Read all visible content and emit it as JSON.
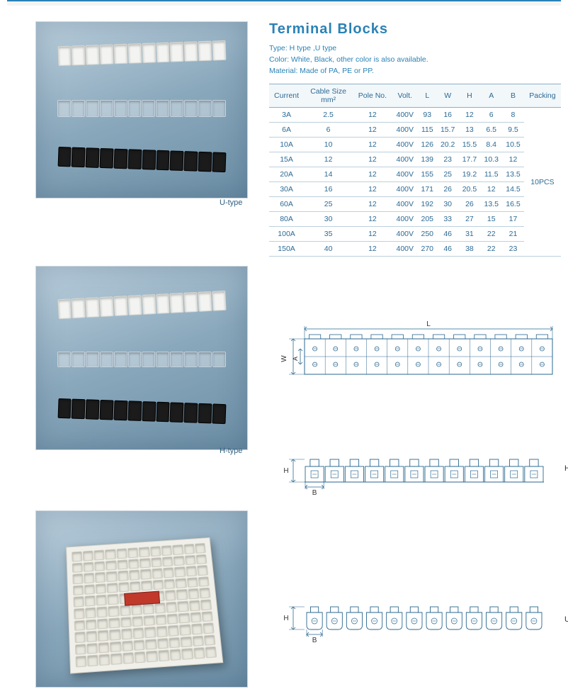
{
  "title": "Terminal  Blocks",
  "meta": {
    "type_line": "Type:  H type ,U type",
    "color_line": "Color:  White, Black,  other color is  also available.",
    "material_line": "Material: Made of PA, PE or PP."
  },
  "photo_labels": {
    "u_type": "U-type",
    "h_type": "H-type"
  },
  "table": {
    "columns": [
      "Current",
      "Cable Size mm²",
      "Pole No.",
      "Volt.",
      "L",
      "W",
      "H",
      "A",
      "B",
      "Packing"
    ],
    "packing": "10PCS",
    "rows": [
      {
        "current": "3A",
        "cable": "2.5",
        "pole": "12",
        "volt": "400V",
        "l": "93",
        "w": "16",
        "h": "12",
        "a": "6",
        "b": "8"
      },
      {
        "current": "6A",
        "cable": "6",
        "pole": "12",
        "volt": "400V",
        "l": "115",
        "w": "15.7",
        "h": "13",
        "a": "6.5",
        "b": "9.5"
      },
      {
        "current": "10A",
        "cable": "10",
        "pole": "12",
        "volt": "400V",
        "l": "126",
        "w": "20.2",
        "h": "15.5",
        "a": "8.4",
        "b": "10.5"
      },
      {
        "current": "15A",
        "cable": "12",
        "pole": "12",
        "volt": "400V",
        "l": "139",
        "w": "23",
        "h": "17.7",
        "a": "10.3",
        "b": "12"
      },
      {
        "current": "20A",
        "cable": "14",
        "pole": "12",
        "volt": "400V",
        "l": "155",
        "w": "25",
        "h": "19.2",
        "a": "11.5",
        "b": "13.5"
      },
      {
        "current": "30A",
        "cable": "16",
        "pole": "12",
        "volt": "400V",
        "l": "171",
        "w": "26",
        "h": "20.5",
        "a": "12",
        "b": "14.5"
      },
      {
        "current": "60A",
        "cable": "25",
        "pole": "12",
        "volt": "400V",
        "l": "192",
        "w": "30",
        "h": "26",
        "a": "13.5",
        "b": "16.5"
      },
      {
        "current": "80A",
        "cable": "30",
        "pole": "12",
        "volt": "400V",
        "l": "205",
        "w": "33",
        "h": "27",
        "a": "15",
        "b": "17"
      },
      {
        "current": "100A",
        "cable": "35",
        "pole": "12",
        "volt": "400V",
        "l": "250",
        "w": "46",
        "h": "31",
        "a": "22",
        "b": "21"
      },
      {
        "current": "150A",
        "cable": "40",
        "pole": "12",
        "volt": "400V",
        "l": "270",
        "w": "46",
        "h": "38",
        "a": "22",
        "b": "23"
      }
    ]
  },
  "diagrams": {
    "top": {
      "dim_L": "L",
      "dim_W": "W",
      "dim_A": "A",
      "poles": 12
    },
    "h": {
      "dim_H": "H",
      "dim_B": "B",
      "side_label": "H",
      "poles": 12
    },
    "u": {
      "dim_H": "H",
      "dim_B": "B",
      "side_label": "U",
      "poles": 12
    }
  },
  "colors": {
    "brand": "#2a82b5",
    "table_border": "#8cb0c8",
    "table_row_border": "#bcd0dd",
    "photo_bg_from": "#bcd0dd",
    "photo_bg_to": "#6c8fa6",
    "line_drawing": "#2a6790"
  }
}
